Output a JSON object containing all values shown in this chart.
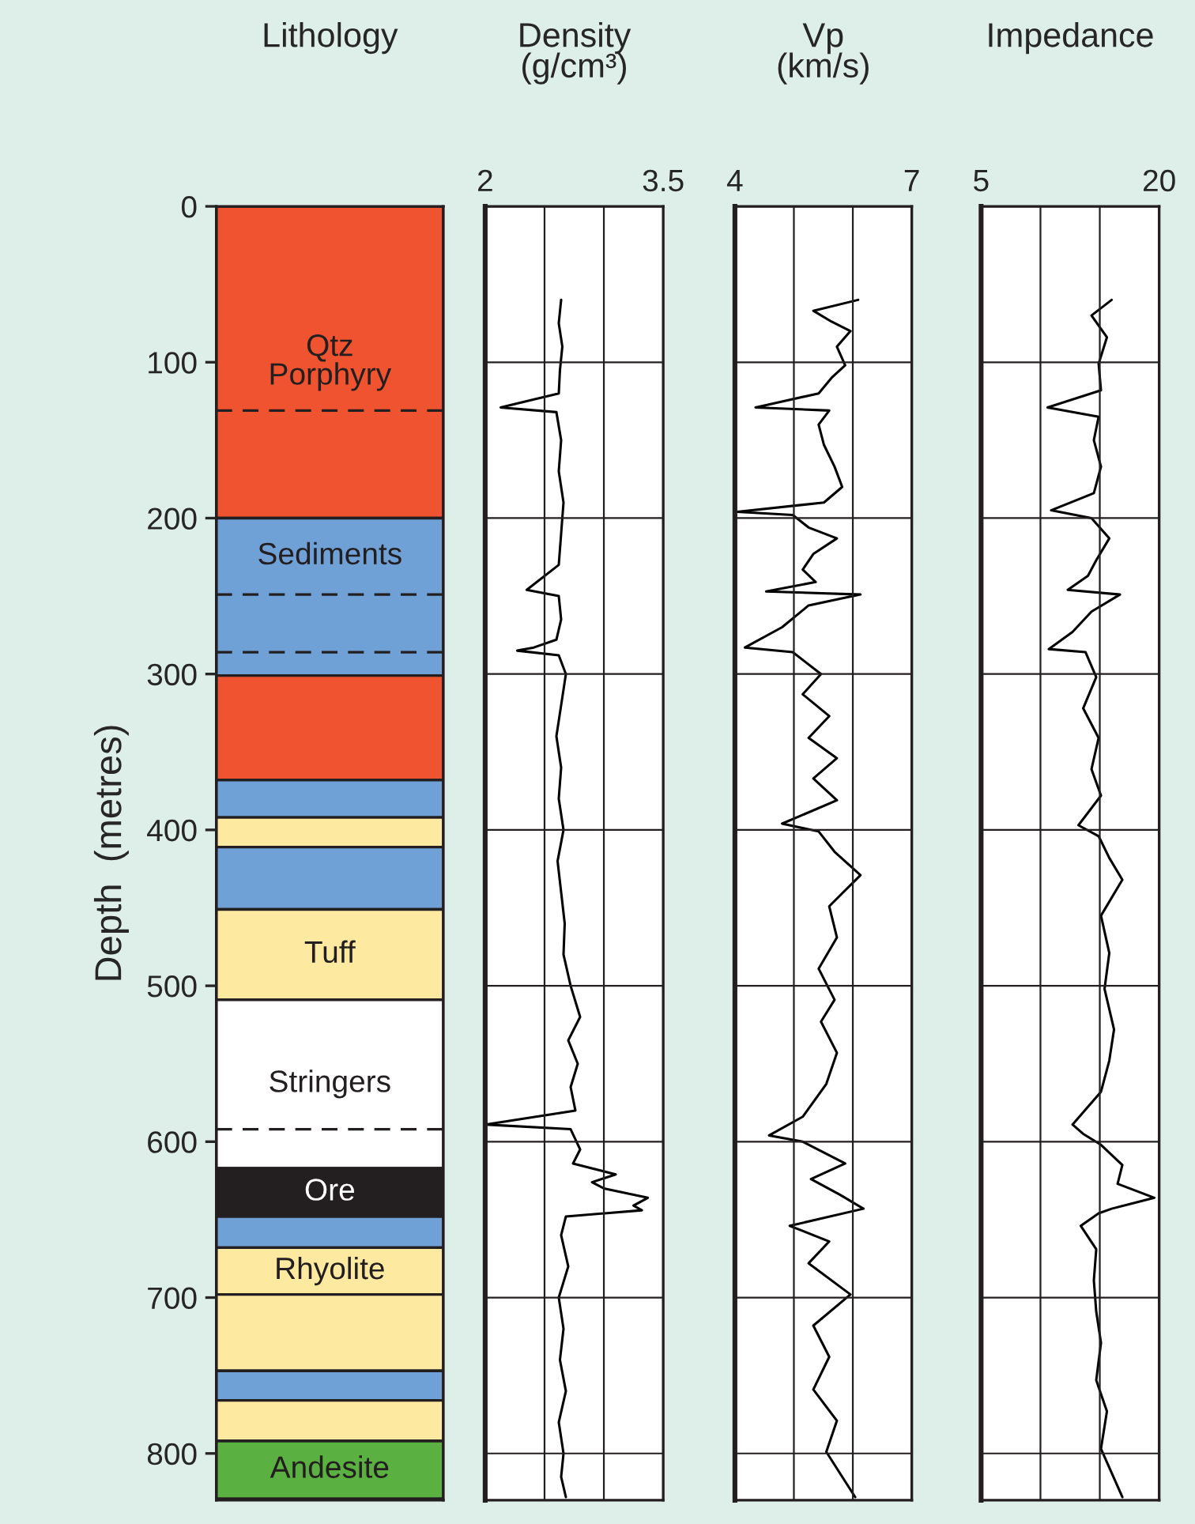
{
  "chart_data": [
    {
      "type": "bar",
      "stacked": true,
      "title": "Lithology",
      "ylabel": "Depth  (metres)",
      "categories": [
        null
      ],
      "tick_labels": "y",
      "grid": false,
      "ylim": [
        830,
        0
      ],
      "yticks": [
        0,
        100,
        200,
        300,
        400,
        500,
        600,
        700,
        800
      ],
      "series": [
        {
          "name": "Qtz\nPorphyry",
          "color": "#f05330",
          "values": [
            200
          ]
        },
        {
          "name": "Sediments",
          "color": "#6fa0d6",
          "values": [
            101
          ]
        },
        {
          "color": "#f05330",
          "values": [
            67
          ]
        },
        {
          "color": "#6fa0d6",
          "values": [
            24
          ]
        },
        {
          "color": "#fde9a0",
          "values": [
            19
          ]
        },
        {
          "color": "#6fa0d6",
          "values": [
            40
          ]
        },
        {
          "name": "Tuff",
          "color": "#fde9a0",
          "values": [
            58
          ]
        },
        {
          "name": "Stringers",
          "color": "#ffffff",
          "values": [
            108
          ]
        },
        {
          "name": "Ore",
          "color": "#231f20",
          "values": [
            31
          ]
        },
        {
          "color": "#6fa0d6",
          "values": [
            20
          ]
        },
        {
          "name": "Rhyolite",
          "color": "#fde9a0",
          "values": [
            30
          ]
        },
        {
          "color": "#fde9a0",
          "values": [
            49
          ]
        },
        {
          "color": "#6fa0d6",
          "values": [
            19
          ]
        },
        {
          "color": "#fde9a0",
          "values": [
            26
          ]
        },
        {
          "name": "Andesite",
          "color": "#5ab040",
          "values": [
            37
          ]
        }
      ],
      "ref_lines": [
        {
          "axis": "y",
          "value": 131,
          "color": "#231f20",
          "line_style": "dashed"
        },
        {
          "axis": "y",
          "value": 249,
          "color": "#231f20",
          "line_style": "dashed"
        },
        {
          "axis": "y",
          "value": 286,
          "color": "#231f20",
          "line_style": "dashed"
        },
        {
          "axis": "y",
          "value": 592,
          "color": "#231f20",
          "line_style": "dashed"
        }
      ]
    },
    {
      "type": "line",
      "title": "Density\n(g/cm³)",
      "tick_labels": "x",
      "grid": true,
      "xlim": [
        2,
        3.5
      ],
      "xticks": [
        2,
        {
          "value": 2.5,
          "label": null
        },
        {
          "value": 3,
          "label": null
        },
        3.5
      ],
      "ylim": [
        830,
        0
      ],
      "yticks": [
        0,
        100,
        200,
        300,
        400,
        500,
        600,
        700,
        800
      ],
      "series": [
        {
          "color": "#000000",
          "x": [
            2.64,
            2.62,
            2.65,
            2.63,
            2.62,
            2.13,
            2.6,
            2.64,
            2.62,
            2.66,
            2.64,
            2.62,
            2.35,
            2.62,
            2.64,
            2.6,
            2.41,
            2.27,
            2.62,
            2.68,
            2.64,
            2.6,
            2.64,
            2.62,
            2.66,
            2.61,
            2.64,
            2.67,
            2.66,
            2.72,
            2.8,
            2.7,
            2.78,
            2.72,
            2.76,
            2.0,
            2.72,
            2.8,
            2.74,
            3.1,
            2.9,
            3.0,
            3.37,
            3.25,
            3.32,
            2.68,
            2.64,
            2.7,
            2.62,
            2.66,
            2.63,
            2.68,
            2.62,
            2.66,
            2.64,
            2.68
          ],
          "values": [
            60,
            75,
            90,
            105,
            120,
            129,
            132,
            150,
            170,
            190,
            210,
            230,
            246,
            250,
            265,
            278,
            283,
            285,
            288,
            300,
            320,
            340,
            360,
            380,
            400,
            420,
            440,
            460,
            480,
            500,
            520,
            535,
            550,
            565,
            580,
            589,
            592,
            605,
            614,
            621,
            626,
            630,
            636,
            641,
            644,
            648,
            660,
            680,
            700,
            720,
            740,
            760,
            780,
            800,
            815,
            828
          ]
        }
      ]
    },
    {
      "type": "line",
      "title": "Vp\n(km/s)",
      "tick_labels": "x",
      "grid": true,
      "xlim": [
        4,
        7
      ],
      "xticks": [
        4,
        {
          "value": 5,
          "label": null
        },
        {
          "value": 6,
          "label": null
        },
        7
      ],
      "ylim": [
        830,
        0
      ],
      "yticks": [
        0,
        100,
        200,
        300,
        400,
        500,
        600,
        700,
        800
      ],
      "series": [
        {
          "color": "#000000",
          "x": [
            6.09,
            5.33,
            5.64,
            5.96,
            5.73,
            5.87,
            5.64,
            5.42,
            4.35,
            5.6,
            5.42,
            5.51,
            5.69,
            5.82,
            5.51,
            4.04,
            4.98,
            5.25,
            5.73,
            5.33,
            5.15,
            5.37,
            4.53,
            6.13,
            5.25,
            4.8,
            4.17,
            4.98,
            5.46,
            5.15,
            5.6,
            5.25,
            5.73,
            5.33,
            5.73,
            4.8,
            5.42,
            5.69,
            6.13,
            5.6,
            5.73,
            5.42,
            5.69,
            5.46,
            5.73,
            5.55,
            5.15,
            4.58,
            5.15,
            5.87,
            5.29,
            5.78,
            6.18,
            4.93,
            5.6,
            5.25,
            5.96,
            5.33,
            5.6,
            5.33,
            5.73,
            5.55,
            6.04
          ],
          "values": [
            60,
            67,
            74,
            80,
            90,
            102,
            110,
            120,
            129,
            131,
            140,
            153,
            167,
            180,
            190,
            196,
            198,
            206,
            213,
            223,
            233,
            241,
            247,
            249,
            256,
            270,
            283,
            286,
            300,
            313,
            327,
            341,
            354,
            367,
            381,
            396,
            401,
            414,
            429,
            449,
            469,
            489,
            509,
            523,
            543,
            563,
            584,
            596,
            600,
            614,
            624,
            634,
            643,
            654,
            664,
            678,
            698,
            718,
            738,
            759,
            779,
            799,
            828
          ]
        }
      ]
    },
    {
      "type": "line",
      "title": "Impedance",
      "tick_labels": "x",
      "grid": true,
      "xlim": [
        5,
        20
      ],
      "xticks": [
        5,
        {
          "value": 10,
          "label": null
        },
        {
          "value": 15,
          "label": null
        },
        20
      ],
      "ylim": [
        830,
        0
      ],
      "yticks": [
        0,
        100,
        200,
        300,
        400,
        500,
        600,
        700,
        800
      ],
      "series": [
        {
          "color": "#000000",
          "x": [
            16.0,
            14.3,
            15.6,
            14.9,
            15.1,
            10.6,
            14.9,
            14.5,
            15.1,
            14.5,
            10.9,
            14.3,
            15.8,
            14.7,
            14.0,
            12.3,
            16.7,
            14.3,
            12.7,
            10.7,
            13.8,
            14.7,
            13.6,
            14.9,
            14.3,
            15.1,
            13.2,
            14.9,
            15.8,
            16.9,
            15.1,
            15.8,
            15.4,
            16.2,
            15.8,
            15.1,
            12.7,
            13.6,
            15.1,
            16.9,
            16.5,
            19.6,
            16.0,
            14.9,
            13.4,
            14.7,
            14.5,
            14.7,
            15.1,
            14.7,
            15.6,
            15.1,
            16.9
          ],
          "values": [
            60,
            70,
            84,
            101,
            118,
            129,
            135,
            150,
            167,
            184,
            195,
            200,
            213,
            227,
            237,
            246,
            249,
            260,
            273,
            284,
            286,
            302,
            322,
            341,
            361,
            378,
            397,
            404,
            418,
            432,
            455,
            479,
            502,
            528,
            548,
            568,
            589,
            595,
            602,
            615,
            627,
            636,
            643,
            646,
            654,
            669,
            689,
            709,
            729,
            753,
            773,
            797,
            828
          ]
        }
      ]
    }
  ]
}
